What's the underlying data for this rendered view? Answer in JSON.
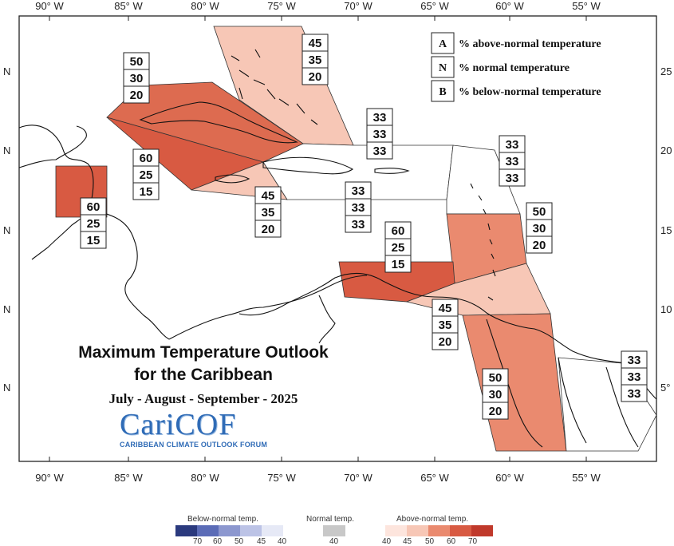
{
  "title_line1": "Maximum Temperature Outlook",
  "title_line2": "for the Caribbean",
  "season": "July - August - September - 2025",
  "logo": {
    "name": "CariCOF",
    "subtitle": "CARIBBEAN CLIMATE OUTLOOK FORUM"
  },
  "longitude_labels": [
    "90° W",
    "85° W",
    "80° W",
    "75° W",
    "70° W",
    "65° W",
    "60° W",
    "55° W"
  ],
  "latitude_labels": [
    "N",
    "N",
    "N",
    "N",
    "N"
  ],
  "latitude_labels_right": [
    "25",
    "20",
    "15",
    "10",
    "5°"
  ],
  "legend": {
    "items": [
      {
        "key": "A",
        "label": "% above-normal temperature"
      },
      {
        "key": "N",
        "label": "% normal temperature"
      },
      {
        "key": "B",
        "label": "% below-normal temperature"
      }
    ]
  },
  "zones": [
    {
      "id": "bahamas",
      "above": "45",
      "normal": "35",
      "below": "20",
      "color": "#f7c7b6"
    },
    {
      "id": "cuba",
      "above": "50",
      "normal": "30",
      "below": "20",
      "color": "#dd6b50"
    },
    {
      "id": "jamaica-caymans",
      "above": "60",
      "normal": "25",
      "below": "15",
      "color": "#d85a42"
    },
    {
      "id": "belize",
      "above": "60",
      "normal": "25",
      "below": "15",
      "color": "#d85a42"
    },
    {
      "id": "haiti-south",
      "above": "45",
      "normal": "35",
      "below": "20",
      "color": "#f7c7b6"
    },
    {
      "id": "hispaniola-north",
      "above": "33",
      "normal": "33",
      "below": "33",
      "color": "#ffffff"
    },
    {
      "id": "puerto-rico",
      "above": "33",
      "normal": "33",
      "below": "33",
      "color": "#ffffff"
    },
    {
      "id": "leeward-north",
      "above": "33",
      "normal": "33",
      "below": "33",
      "color": "#ffffff"
    },
    {
      "id": "windwards",
      "above": "50",
      "normal": "30",
      "below": "20",
      "color": "#ea8a6f"
    },
    {
      "id": "abc-caribbean-sea",
      "above": "60",
      "normal": "25",
      "below": "15",
      "color": "#d85a42"
    },
    {
      "id": "trinidad-venezuela",
      "above": "45",
      "normal": "35",
      "below": "20",
      "color": "#f7c7b6"
    },
    {
      "id": "guyana",
      "above": "50",
      "normal": "30",
      "below": "20",
      "color": "#ea8a6f"
    },
    {
      "id": "french-guiana",
      "above": "33",
      "normal": "33",
      "below": "33",
      "color": "#ffffff"
    }
  ],
  "colorbar": {
    "below_title": "Below-normal temp.",
    "normal_title": "Normal temp.",
    "above_title": "Above-normal temp.",
    "below_ticks": [
      "70",
      "60",
      "50",
      "45",
      "40"
    ],
    "normal_ticks": [
      "40"
    ],
    "above_ticks": [
      "40",
      "45",
      "50",
      "60",
      "70"
    ],
    "below_colors": [
      "#2b3a7e",
      "#5b6cb7",
      "#8c97cf",
      "#bcc3e6",
      "#e6e9f6"
    ],
    "normal_color": "#c8c8c8",
    "above_colors": [
      "#fde5dd",
      "#f7c7b6",
      "#ea8a6f",
      "#d85a42",
      "#c0392b"
    ]
  }
}
